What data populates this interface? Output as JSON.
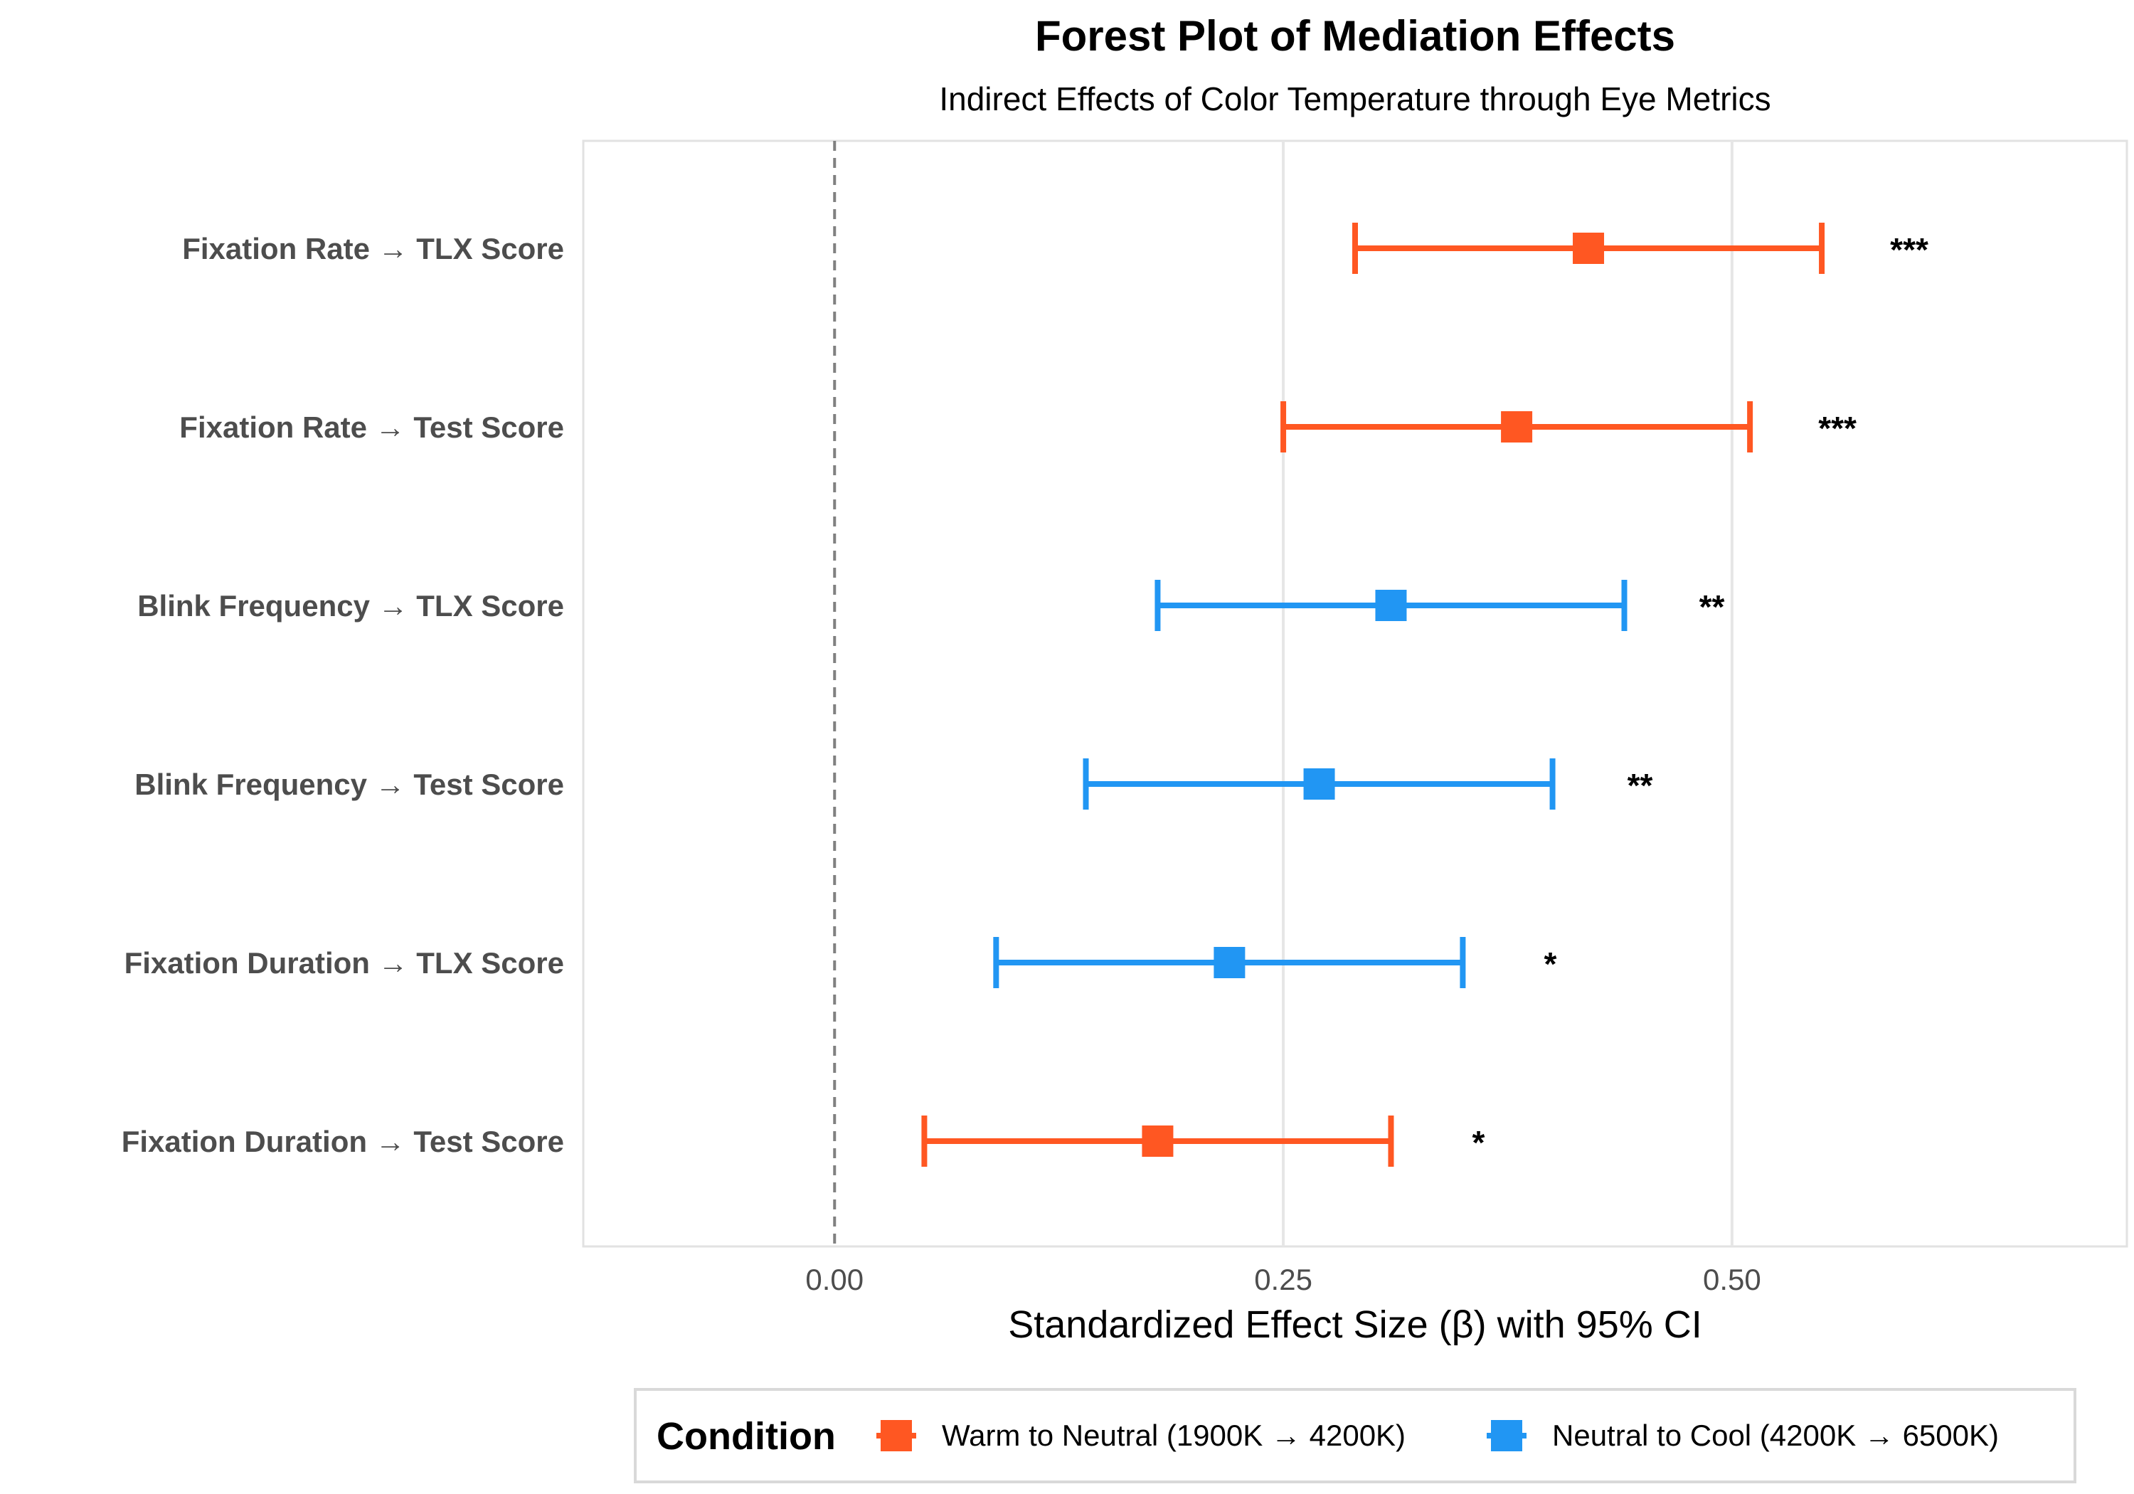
{
  "chart_data": {
    "type": "forest",
    "title": "Forest Plot of Mediation Effects",
    "subtitle": "Indirect Effects of Color Temperature through Eye Metrics",
    "xlabel": "Standardized Effect Size (β) with 95% CI",
    "xlim": [
      -0.14,
      0.72
    ],
    "xticks": [
      0.0,
      0.25,
      0.5
    ],
    "xtick_labels": [
      "0.00",
      "0.25",
      "0.50"
    ],
    "reference_line": 0,
    "rows": [
      {
        "label": "Fixation Rate → TLX Score",
        "estimate": 0.42,
        "ci_low": 0.29,
        "ci_high": 0.55,
        "sig": "***",
        "condition": "warm"
      },
      {
        "label": "Fixation Rate → Test Score",
        "estimate": 0.38,
        "ci_low": 0.25,
        "ci_high": 0.51,
        "sig": "***",
        "condition": "warm"
      },
      {
        "label": "Blink Frequency → TLX Score",
        "estimate": 0.31,
        "ci_low": 0.18,
        "ci_high": 0.44,
        "sig": "**",
        "condition": "cool"
      },
      {
        "label": "Blink Frequency → Test Score",
        "estimate": 0.27,
        "ci_low": 0.14,
        "ci_high": 0.4,
        "sig": "**",
        "condition": "cool"
      },
      {
        "label": "Fixation Duration → TLX Score",
        "estimate": 0.22,
        "ci_low": 0.09,
        "ci_high": 0.35,
        "sig": "*",
        "condition": "cool"
      },
      {
        "label": "Fixation Duration → Test Score",
        "estimate": 0.18,
        "ci_low": 0.05,
        "ci_high": 0.31,
        "sig": "*",
        "condition": "warm"
      }
    ],
    "legend": {
      "title": "Condition",
      "position": "bottom",
      "entries": [
        {
          "key": "warm",
          "label": "Warm to Neutral (1900K → 4200K)",
          "color": "#FF5722"
        },
        {
          "key": "cool",
          "label": "Neutral to Cool (4200K → 6500K)",
          "color": "#2196F3"
        }
      ]
    }
  }
}
